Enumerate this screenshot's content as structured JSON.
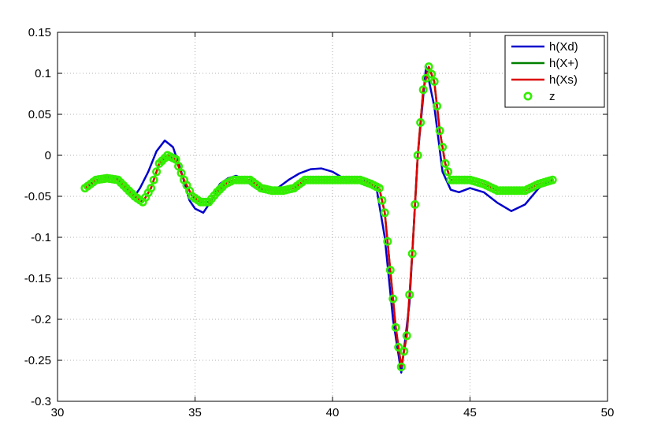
{
  "chart_data": {
    "type": "line",
    "xlim": [
      30,
      50
    ],
    "ylim": [
      -0.3,
      0.15
    ],
    "x_ticks": [
      30,
      35,
      40,
      45,
      50
    ],
    "y_ticks": [
      0.15,
      0.1,
      0.05,
      0,
      -0.05,
      -0.1,
      -0.15,
      -0.2,
      -0.25,
      -0.3
    ],
    "x_tick_labels": [
      "30",
      "35",
      "40",
      "45",
      "50"
    ],
    "y_tick_labels": [
      "0.15",
      "0.1",
      "0.05",
      "0",
      "-0.05",
      "-0.1",
      "-0.15",
      "-0.2",
      "-0.25",
      "-0.3"
    ],
    "grid": true,
    "legend_position": "top-right",
    "legend": [
      "h(Xd)",
      "h(X+)",
      "h(Xs)",
      "z"
    ],
    "series": [
      {
        "name": "h(Xd)",
        "kind": "line",
        "color": "#0000cc",
        "x": [
          31.0,
          31.5,
          32.0,
          32.2,
          32.5,
          32.8,
          33.0,
          33.3,
          33.6,
          33.9,
          34.2,
          34.5,
          34.8,
          35.0,
          35.3,
          35.6,
          35.9,
          36.2,
          36.5,
          36.8,
          37.2,
          37.6,
          38.0,
          38.4,
          38.8,
          39.2,
          39.6,
          40.0,
          40.4,
          40.8,
          41.2,
          41.6,
          41.9,
          42.2,
          42.5,
          42.8,
          43.1,
          43.4,
          43.7,
          44.0,
          44.3,
          44.6,
          45.0,
          45.5,
          46.0,
          46.5,
          47.0,
          47.5,
          48.0
        ],
        "y": [
          -0.04,
          -0.03,
          -0.025,
          -0.03,
          -0.04,
          -0.05,
          -0.04,
          -0.02,
          0.005,
          0.018,
          0.01,
          -0.02,
          -0.055,
          -0.065,
          -0.07,
          -0.055,
          -0.035,
          -0.028,
          -0.025,
          -0.03,
          -0.04,
          -0.042,
          -0.04,
          -0.03,
          -0.022,
          -0.017,
          -0.016,
          -0.02,
          -0.028,
          -0.033,
          -0.03,
          -0.04,
          -0.1,
          -0.2,
          -0.265,
          -0.18,
          0.0,
          0.108,
          0.06,
          -0.02,
          -0.042,
          -0.045,
          -0.04,
          -0.045,
          -0.058,
          -0.068,
          -0.06,
          -0.04,
          -0.03
        ]
      },
      {
        "name": "h(X+)",
        "kind": "line",
        "color": "#008000",
        "x": [
          31.0,
          31.4,
          31.8,
          32.2,
          32.5,
          32.8,
          33.1,
          33.4,
          33.7,
          34.0,
          34.3,
          34.6,
          34.9,
          35.2,
          35.5,
          35.8,
          36.1,
          36.4,
          36.7,
          37.0,
          37.4,
          37.8,
          38.2,
          38.6,
          39.0,
          39.4,
          39.8,
          40.2,
          40.6,
          41.0,
          41.4,
          41.7,
          41.9,
          42.1,
          42.3,
          42.5,
          42.7,
          42.9,
          43.1,
          43.3,
          43.5,
          43.7,
          43.9,
          44.1,
          44.3,
          44.6,
          45.0,
          45.5,
          46.0,
          46.5,
          47.0,
          47.5,
          48.0
        ],
        "y": [
          -0.04,
          -0.03,
          -0.028,
          -0.03,
          -0.04,
          -0.05,
          -0.057,
          -0.04,
          -0.01,
          0.0,
          -0.005,
          -0.03,
          -0.05,
          -0.057,
          -0.057,
          -0.045,
          -0.035,
          -0.03,
          -0.03,
          -0.03,
          -0.04,
          -0.043,
          -0.043,
          -0.04,
          -0.03,
          -0.03,
          -0.03,
          -0.03,
          -0.03,
          -0.03,
          -0.035,
          -0.04,
          -0.07,
          -0.14,
          -0.21,
          -0.258,
          -0.22,
          -0.12,
          0.0,
          0.08,
          0.108,
          0.09,
          0.03,
          -0.01,
          -0.03,
          -0.03,
          -0.03,
          -0.035,
          -0.043,
          -0.043,
          -0.043,
          -0.035,
          -0.03
        ]
      },
      {
        "name": "h(Xs)",
        "kind": "line",
        "color": "#dd0000",
        "x": [
          31.0,
          31.4,
          31.8,
          32.2,
          32.5,
          32.8,
          33.1,
          33.4,
          33.7,
          34.0,
          34.3,
          34.6,
          34.9,
          35.2,
          35.5,
          35.8,
          36.1,
          36.4,
          36.7,
          37.0,
          37.4,
          37.8,
          38.2,
          38.6,
          39.0,
          39.4,
          39.8,
          40.2,
          40.6,
          41.0,
          41.4,
          41.7,
          41.9,
          42.1,
          42.3,
          42.5,
          42.7,
          42.9,
          43.1,
          43.3,
          43.5,
          43.7,
          43.9,
          44.1,
          44.3,
          44.6,
          45.0,
          45.5,
          46.0,
          46.5,
          47.0,
          47.5,
          48.0
        ],
        "y": [
          -0.04,
          -0.03,
          -0.028,
          -0.03,
          -0.04,
          -0.05,
          -0.057,
          -0.04,
          -0.01,
          0.0,
          -0.005,
          -0.03,
          -0.05,
          -0.057,
          -0.057,
          -0.045,
          -0.035,
          -0.03,
          -0.03,
          -0.03,
          -0.04,
          -0.043,
          -0.043,
          -0.04,
          -0.03,
          -0.03,
          -0.03,
          -0.03,
          -0.03,
          -0.03,
          -0.035,
          -0.04,
          -0.07,
          -0.14,
          -0.21,
          -0.258,
          -0.22,
          -0.12,
          0.0,
          0.08,
          0.108,
          0.09,
          0.03,
          -0.01,
          -0.03,
          -0.03,
          -0.03,
          -0.035,
          -0.043,
          -0.043,
          -0.043,
          -0.035,
          -0.03
        ]
      },
      {
        "name": "z",
        "kind": "markers",
        "color": "#33ee00",
        "x": [
          31.0,
          31.4,
          31.8,
          32.2,
          32.5,
          32.8,
          33.1,
          33.4,
          33.7,
          34.0,
          34.3,
          34.6,
          34.9,
          35.2,
          35.5,
          35.8,
          36.1,
          36.4,
          36.7,
          37.0,
          37.4,
          37.8,
          38.2,
          38.6,
          39.0,
          39.4,
          39.8,
          40.2,
          40.6,
          41.0,
          41.4,
          41.7,
          41.9,
          42.1,
          42.3,
          42.5,
          42.7,
          42.9,
          43.1,
          43.3,
          43.5,
          43.7,
          43.9,
          44.1,
          44.3,
          44.6,
          45.0,
          45.5,
          46.0,
          46.5,
          47.0,
          47.5,
          48.0
        ],
        "y": [
          -0.04,
          -0.03,
          -0.028,
          -0.03,
          -0.04,
          -0.05,
          -0.057,
          -0.04,
          -0.01,
          0.0,
          -0.005,
          -0.03,
          -0.05,
          -0.057,
          -0.057,
          -0.045,
          -0.035,
          -0.03,
          -0.03,
          -0.03,
          -0.04,
          -0.043,
          -0.043,
          -0.04,
          -0.03,
          -0.03,
          -0.03,
          -0.03,
          -0.03,
          -0.03,
          -0.035,
          -0.04,
          -0.07,
          -0.14,
          -0.21,
          -0.258,
          -0.22,
          -0.12,
          0.0,
          0.08,
          0.108,
          0.09,
          0.03,
          -0.01,
          -0.03,
          -0.03,
          -0.03,
          -0.035,
          -0.043,
          -0.043,
          -0.043,
          -0.035,
          -0.03
        ]
      }
    ]
  }
}
